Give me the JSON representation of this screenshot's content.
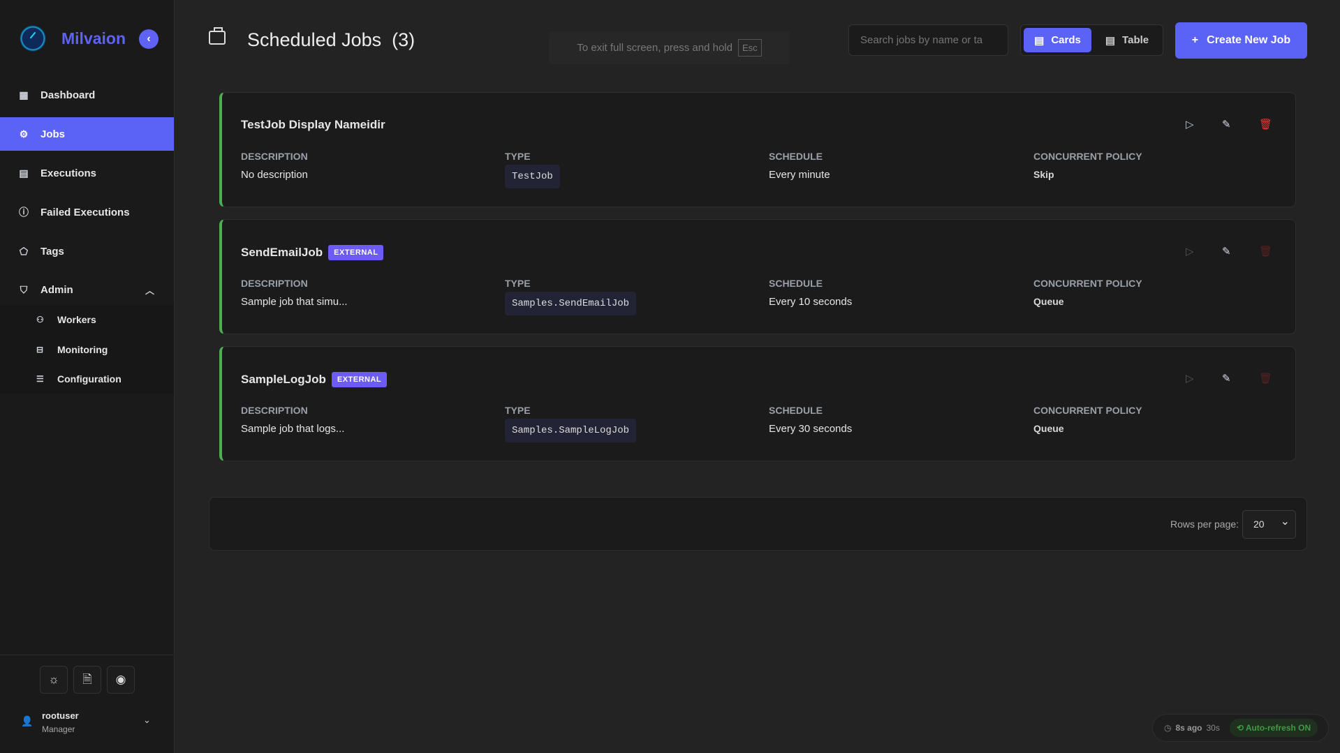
{
  "app": {
    "brand": "Milvaion",
    "collapse_icon": "‹"
  },
  "sidebar": {
    "items": [
      {
        "label": "Dashboard",
        "icon": "▦"
      },
      {
        "label": "Jobs",
        "icon": "⚙"
      },
      {
        "label": "Executions",
        "icon": "▤"
      },
      {
        "label": "Failed Executions",
        "icon": "ⓘ"
      },
      {
        "label": "Tags",
        "icon": "⬠"
      },
      {
        "label": "Admin",
        "icon": "⛉"
      }
    ],
    "admin_items": [
      {
        "label": "Workers",
        "icon": "⚇"
      },
      {
        "label": "Monitoring",
        "icon": "⊟"
      },
      {
        "label": "Configuration",
        "icon": "☰"
      }
    ],
    "bottom_icons": [
      "☼",
      "🗎",
      "◉"
    ],
    "user": {
      "name": "rootuser",
      "role": "Manager"
    }
  },
  "header": {
    "title": "Scheduled Jobs",
    "count": "(3)",
    "fullscreen_hint": "To exit full screen, press and hold",
    "fullscreen_key": "Esc",
    "search_placeholder": "Search jobs by name or ta",
    "view_cards": "Cards",
    "view_table": "Table",
    "create_label": "Create New Job"
  },
  "labels": {
    "description": "DESCRIPTION",
    "type": "TYPE",
    "schedule": "SCHEDULE",
    "policy": "CONCURRENT POLICY"
  },
  "jobs": [
    {
      "name": "TestJob Display Nameidir",
      "badge": "",
      "description": "No description",
      "type": "TestJob",
      "schedule": "Every minute",
      "policy": "Skip"
    },
    {
      "name": "SendEmailJob",
      "badge": "EXTERNAL",
      "description": "Sample job that simu...",
      "type": "Samples.SendEmailJob",
      "schedule": "Every 10 seconds",
      "policy": "Queue"
    },
    {
      "name": "SampleLogJob",
      "badge": "EXTERNAL",
      "description": "Sample job that logs...",
      "type": "Samples.SampleLogJob",
      "schedule": "Every 30 seconds",
      "policy": "Queue"
    }
  ],
  "pagination": {
    "rows_label": "Rows per page:",
    "rows_value": "20"
  },
  "status": {
    "last_refresh": "8s ago",
    "interval": "30s",
    "auto_refresh": "Auto-refresh ON"
  },
  "colors": {
    "accent": "#5b63f6",
    "active_border": "#4caf50",
    "delete": "#e53935",
    "badge": "#6c5cf5"
  }
}
